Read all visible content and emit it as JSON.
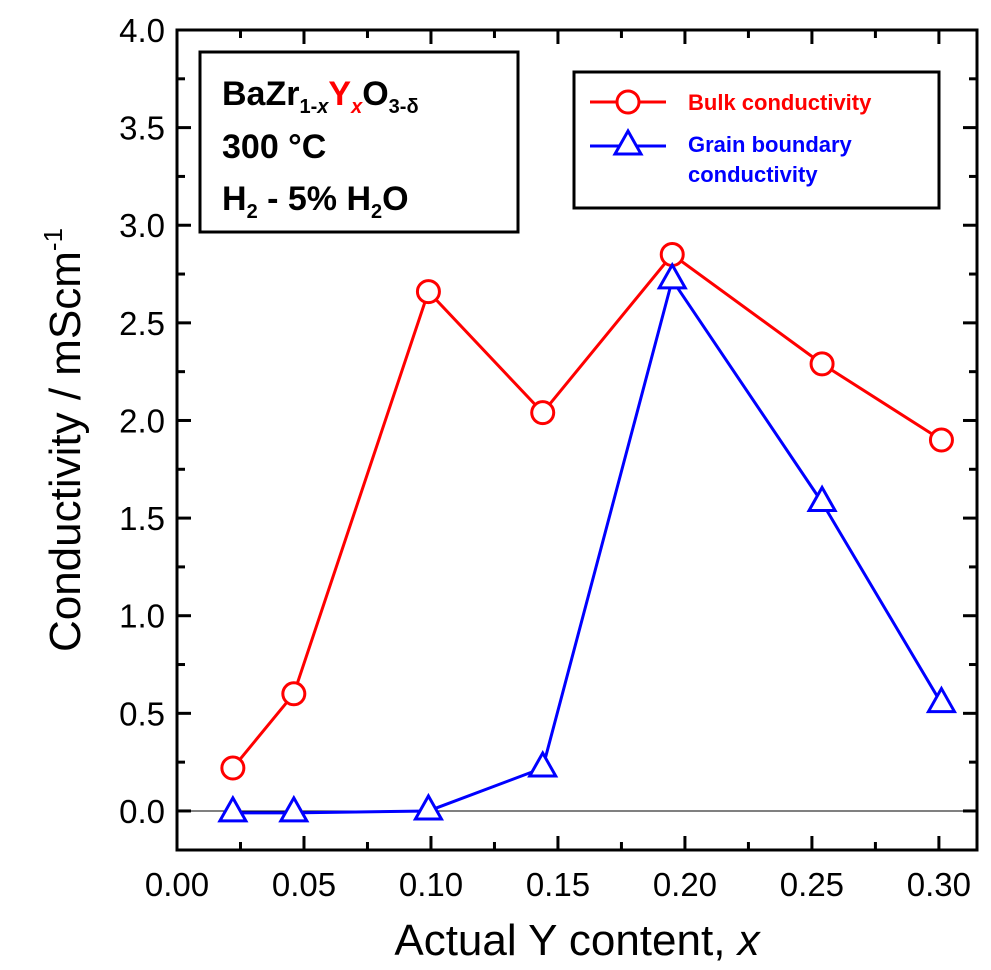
{
  "chart_data": {
    "type": "line",
    "xlabel": "Actual Y content, ",
    "xlabel_italic": "x",
    "ylabel": "Conductivity / mScm",
    "ylabel_sup": "-1",
    "xlim": [
      0.0,
      0.315
    ],
    "ylim": [
      -0.2,
      4.0
    ],
    "x_ticks": [
      "0.00",
      "0.05",
      "0.10",
      "0.15",
      "0.20",
      "0.25",
      "0.30"
    ],
    "y_ticks": [
      "0.0",
      "0.5",
      "1.0",
      "1.5",
      "2.0",
      "2.5",
      "3.0",
      "3.5",
      "4.0"
    ],
    "zero_line": true,
    "legend_position": "top-right",
    "series": [
      {
        "name": "Bulk conductivity",
        "color": "#ff0000",
        "marker": "circle",
        "x": [
          0.022,
          0.046,
          0.099,
          0.144,
          0.195,
          0.254,
          0.301
        ],
        "y": [
          0.22,
          0.6,
          2.66,
          2.04,
          2.85,
          2.29,
          1.9
        ]
      },
      {
        "name": "Grain boundary conductivity",
        "name_lines": [
          "Grain boundary",
          "conductivity"
        ],
        "color": "#0000ff",
        "marker": "triangle",
        "x": [
          0.022,
          0.046,
          0.099,
          0.144,
          0.195,
          0.254,
          0.301
        ],
        "y": [
          -0.01,
          -0.01,
          0.0,
          0.22,
          2.72,
          1.58,
          0.55
        ]
      }
    ],
    "annotation": {
      "formula_ba": "BaZr",
      "formula_sub1": "1-",
      "formula_sub1_x": "x",
      "formula_y": "Y",
      "formula_ysub": "x",
      "formula_o": "O",
      "formula_osub": "3-δ",
      "temperature": "300 °C",
      "atm_h": "H",
      "atm_sub": "2",
      "atm_mid": " - 5% H",
      "atm_sub2": "2",
      "atm_end": "O"
    }
  }
}
